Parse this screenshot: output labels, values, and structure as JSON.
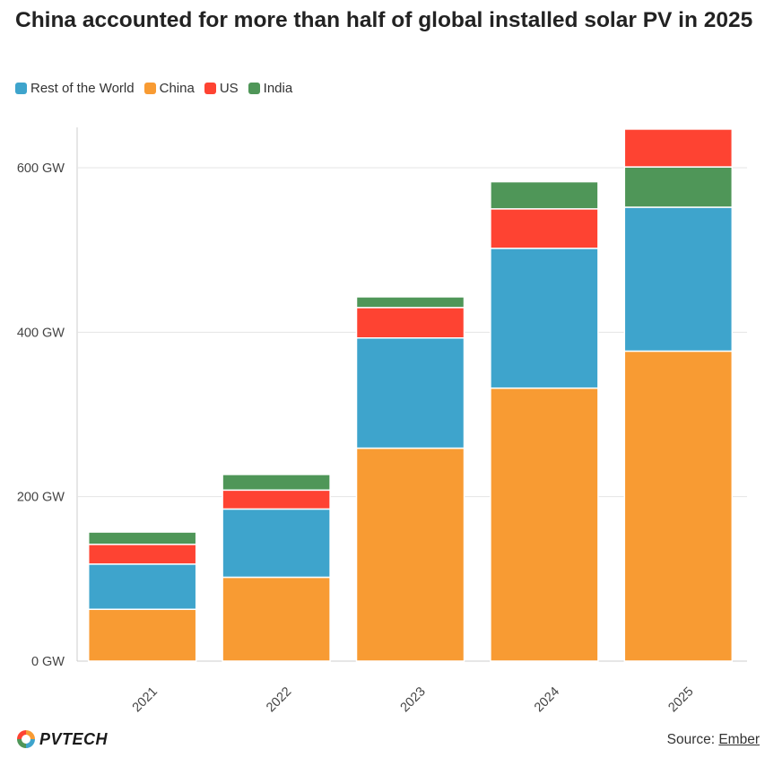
{
  "chart_data": {
    "type": "bar",
    "stacked": true,
    "title": "China accounted for more than half of global installed solar PV in 2025",
    "categories": [
      "2021",
      "2022",
      "2023",
      "2024",
      "2025"
    ],
    "series": [
      {
        "name": "China",
        "color": "#f89b33",
        "values": [
          63,
          102,
          259,
          332,
          377
        ]
      },
      {
        "name": "Rest of the World",
        "color": "#3ea4cc",
        "values": [
          55,
          83,
          134,
          170,
          175
        ]
      },
      {
        "name": "US",
        "color": "#fe4332",
        "values": [
          24,
          23,
          37,
          48,
          0
        ]
      },
      {
        "name": "India",
        "color": "#4f9658",
        "values": [
          15,
          19,
          13,
          33,
          49
        ]
      }
    ],
    "extra_top": {
      "note_series": "US",
      "values_2025": 46
    },
    "legend_order": [
      "Rest of the World",
      "China",
      "US",
      "India"
    ],
    "legend_placement": "top-left",
    "yticks": [
      "0 GW",
      "200 GW",
      "400 GW",
      "600 GW"
    ],
    "ytick_values": [
      0,
      200,
      400,
      600
    ],
    "ylim": [
      0,
      650
    ],
    "grid": true
  },
  "footer": {
    "source_prefix": "Source: ",
    "source_link": "Ember",
    "logo_text": "PVTECH"
  }
}
